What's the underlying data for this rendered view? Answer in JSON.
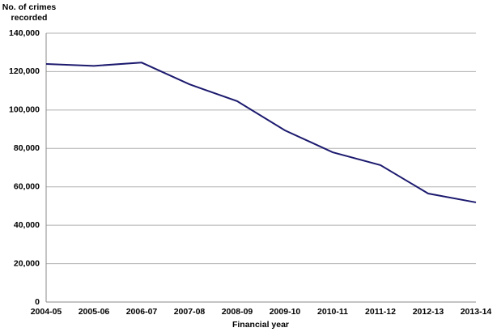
{
  "chart_data": {
    "type": "line",
    "y_label": "No. of crimes recorded",
    "x_label": "Financial year",
    "categories": [
      "2004-05",
      "2005-06",
      "2006-07",
      "2007-08",
      "2008-09",
      "2009-10",
      "2010-11",
      "2011-12",
      "2012-13",
      "2013-14"
    ],
    "values": [
      124000,
      123000,
      124700,
      113400,
      104600,
      89400,
      78000,
      71300,
      56500,
      51900
    ],
    "color": "#1c1a6e",
    "ylim": [
      0,
      140000
    ],
    "yticks": [
      0,
      {
        "value": 20000,
        "label": "20,000"
      },
      {
        "value": 40000,
        "label": "40,000"
      },
      {
        "value": 60000,
        "label": "60,000"
      },
      {
        "value": 80000,
        "label": "80,000"
      },
      {
        "value": 100000,
        "label": "100,000"
      },
      {
        "value": 120000,
        "label": "120,000"
      },
      {
        "value": 140000,
        "label": "140,000"
      }
    ],
    "grid": true
  }
}
